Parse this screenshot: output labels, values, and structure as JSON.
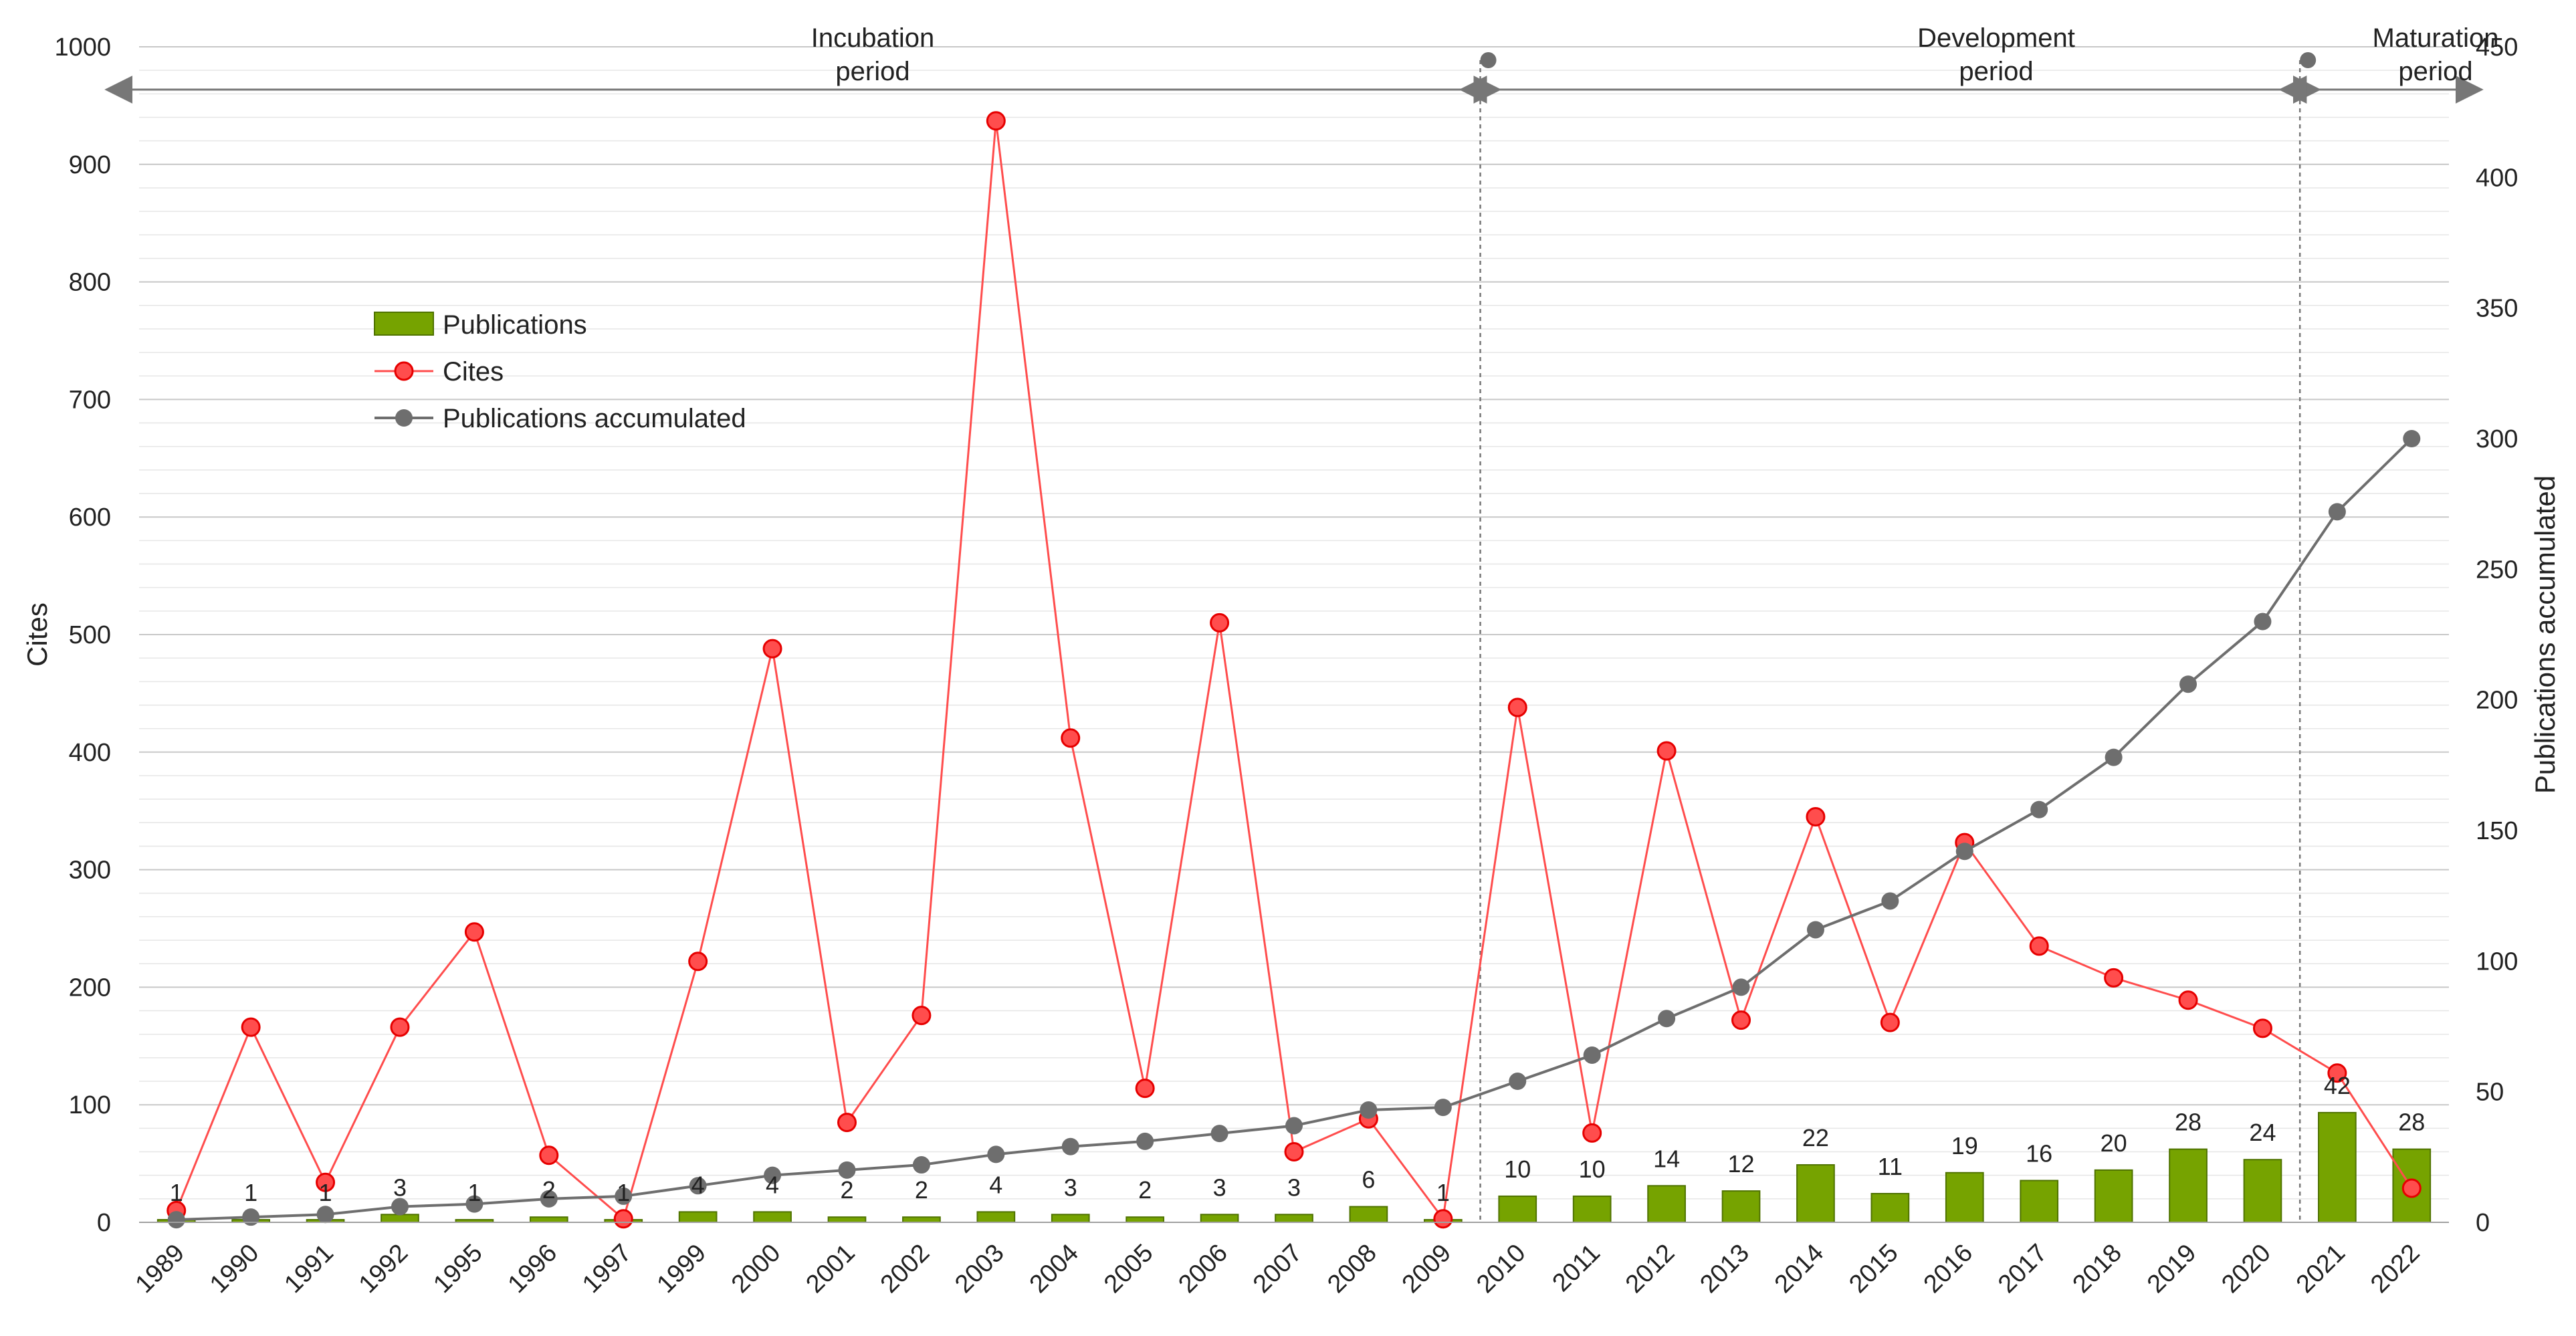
{
  "chart_data": {
    "type": "bar",
    "categories": [
      "1989",
      "1990",
      "1991",
      "1992",
      "1995",
      "1996",
      "1997",
      "1999",
      "2000",
      "2001",
      "2002",
      "2003",
      "2004",
      "2005",
      "2006",
      "2007",
      "2008",
      "2009",
      "2010",
      "2011",
      "2012",
      "2013",
      "2014",
      "2015",
      "2016",
      "2017",
      "2018",
      "2019",
      "2020",
      "2021",
      "2022"
    ],
    "series": [
      {
        "name": "Publications",
        "type": "bar",
        "axis": "right",
        "color": "#76a300",
        "values": [
          1,
          1,
          1,
          3,
          1,
          2,
          1,
          4,
          4,
          2,
          2,
          4,
          3,
          2,
          3,
          3,
          6,
          1,
          10,
          10,
          14,
          12,
          22,
          11,
          19,
          16,
          20,
          28,
          24,
          42,
          28
        ]
      },
      {
        "name": "Cites",
        "type": "line",
        "axis": "left",
        "color": "#ff4d4d",
        "values": [
          10,
          166,
          34,
          166,
          247,
          57,
          3,
          222,
          488,
          85,
          176,
          937,
          412,
          114,
          510,
          60,
          88,
          3,
          438,
          76,
          401,
          172,
          345,
          170,
          323,
          235,
          208,
          189,
          165,
          127,
          29
        ]
      },
      {
        "name": "Publications accumulated",
        "type": "line",
        "axis": "right",
        "color": "#6e6e6e",
        "values": [
          1,
          2,
          3,
          6,
          7,
          9,
          10,
          14,
          18,
          20,
          22,
          26,
          29,
          31,
          34,
          37,
          43,
          44,
          54,
          64,
          78,
          90,
          112,
          123,
          142,
          158,
          178,
          206,
          230,
          272,
          300
        ]
      }
    ],
    "bar_labels": [
      "1",
      "1",
      "1",
      "3",
      "1",
      "2",
      "1",
      "4",
      "4",
      "2",
      "2",
      "4",
      "3",
      "2",
      "3",
      "3",
      "6",
      "1",
      "10",
      "10",
      "14",
      "12",
      "22",
      "11",
      "19",
      "16",
      "20",
      "28",
      "24",
      "42",
      "28"
    ],
    "ylabel": "Cites",
    "ylabel_right": "Publications accumulated",
    "ylim": [
      0,
      1000
    ],
    "ylim_right": [
      0,
      450
    ],
    "yticks": [
      "0",
      "100",
      "200",
      "300",
      "400",
      "500",
      "600",
      "700",
      "800",
      "900",
      "1000"
    ],
    "yticks_right": [
      "0",
      "50",
      "100",
      "150",
      "200",
      "250",
      "300",
      "350",
      "400",
      "450"
    ],
    "legend": {
      "placement": "upper-left",
      "entries": [
        "Publications",
        "Cites",
        "Publications accumulated"
      ]
    },
    "periods": [
      {
        "line1": "Incubation",
        "line2": "period"
      },
      {
        "line1": "Development",
        "line2": "period"
      },
      {
        "line1": "Maturation",
        "line2": "period"
      }
    ],
    "grid": true
  }
}
